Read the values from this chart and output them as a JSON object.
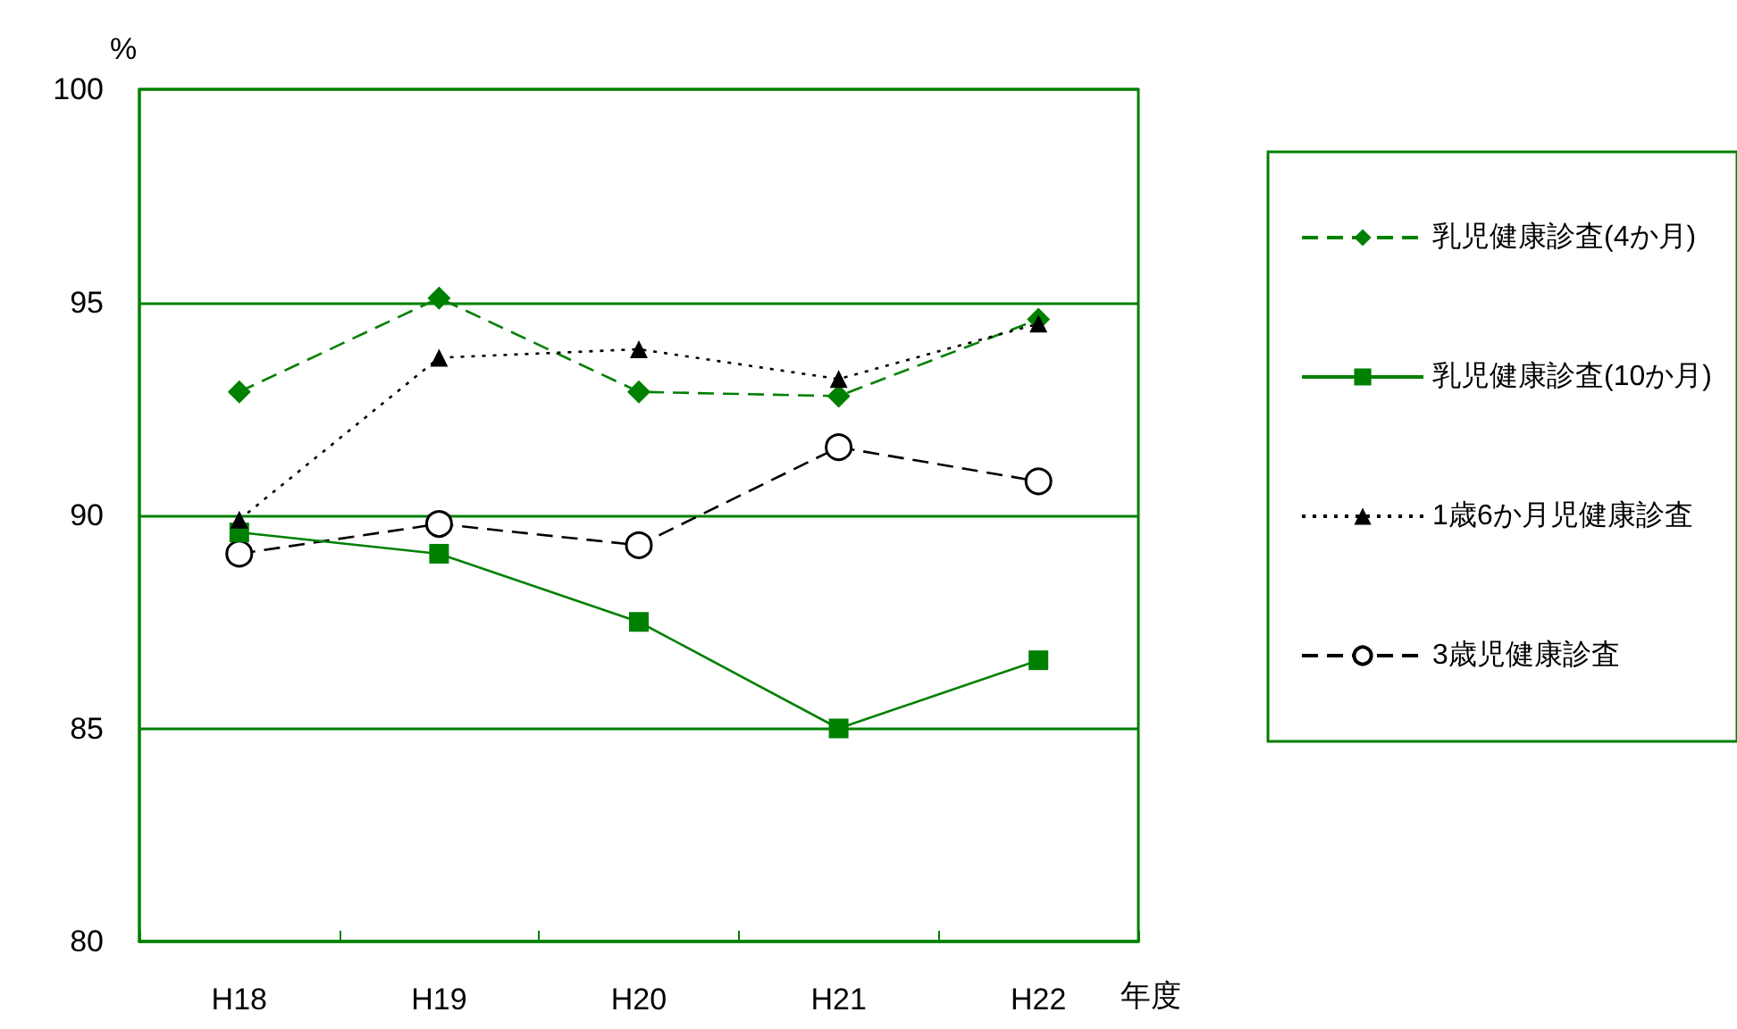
{
  "chart_data": {
    "type": "line",
    "ylabel": "%",
    "xlabel": "年度",
    "categories": [
      "H18",
      "H19",
      "H20",
      "H21",
      "H22"
    ],
    "series": [
      {
        "name": "乳児健康診査(4か月)",
        "color": "#008000",
        "marker": "diamond",
        "line_style": "dashed",
        "values": [
          92.9,
          95.1,
          92.9,
          92.8,
          94.6
        ]
      },
      {
        "name": "乳児健康診査(10か月)",
        "color": "#008000",
        "marker": "square",
        "line_style": "solid",
        "values": [
          89.6,
          89.1,
          87.5,
          85.0,
          86.6
        ]
      },
      {
        "name": "1歳6か月児健康診査",
        "color": "#000000",
        "marker": "triangle",
        "line_style": "dotted",
        "values": [
          89.9,
          93.7,
          93.9,
          93.2,
          94.5
        ]
      },
      {
        "name": "3歳児健康診査",
        "color": "#000000",
        "marker": "circle",
        "line_style": "dashed",
        "values": [
          89.1,
          89.8,
          89.3,
          91.6,
          90.8
        ]
      }
    ],
    "ylim": [
      80,
      100
    ],
    "yticks": [
      80,
      85,
      90,
      95,
      100
    ],
    "grid": "y",
    "legend": "right"
  }
}
